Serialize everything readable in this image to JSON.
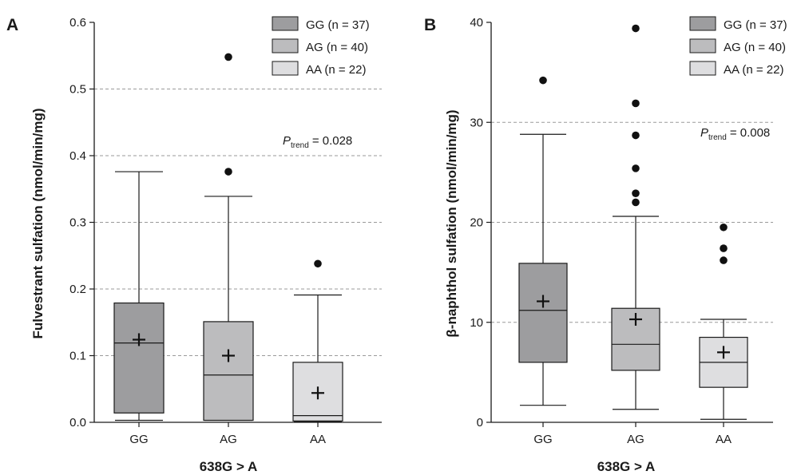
{
  "chart_data": [
    {
      "panel": "A",
      "type": "boxplot",
      "xlabel": "638G > A",
      "ylabel": "Fulvestrant sulfation (nmol/min/mg)",
      "ylim": [
        0,
        0.6
      ],
      "yticks": [
        "0.0",
        "0.1",
        "0.2",
        "0.3",
        "0.4",
        "0.5",
        "0.6"
      ],
      "grid": "horizontal dashed at 0.1–0.5",
      "annotation": {
        "p_symbol": "P",
        "p_subscript": "trend",
        "p_value": "= 0.028"
      },
      "legend": [
        "GG (n = 37)",
        "AG (n = 40)",
        "AA (n = 22)"
      ],
      "categories": [
        "GG",
        "AG",
        "AA"
      ],
      "boxes": [
        {
          "name": "GG",
          "color": "#9d9d9f",
          "whisker_low": 0.003,
          "q1": 0.014,
          "median": 0.119,
          "q3": 0.179,
          "whisker_high": 0.376,
          "mean": 0.124,
          "outliers": []
        },
        {
          "name": "AG",
          "color": "#bcbcbe",
          "whisker_low": 0.003,
          "q1": 0.003,
          "median": 0.071,
          "q3": 0.151,
          "whisker_high": 0.339,
          "mean": 0.1,
          "outliers": [
            0.376,
            0.548
          ]
        },
        {
          "name": "AA",
          "color": "#dedee0",
          "whisker_low": 0.001,
          "q1": 0.002,
          "median": 0.01,
          "q3": 0.09,
          "whisker_high": 0.191,
          "mean": 0.044,
          "outliers": [
            0.238
          ]
        }
      ]
    },
    {
      "panel": "B",
      "type": "boxplot",
      "xlabel": "638G > A",
      "ylabel": "β-naphthol sulfation (nmol/min/mg)",
      "ylim": [
        0,
        40
      ],
      "yticks": [
        "0",
        "10",
        "20",
        "30",
        "40"
      ],
      "grid": "horizontal dashed at 10–30",
      "annotation": {
        "p_symbol": "P",
        "p_subscript": "trend",
        "p_value": "= 0.008"
      },
      "legend": [
        "GG (n = 37)",
        "AG (n = 40)",
        "AA (n = 22)"
      ],
      "categories": [
        "GG",
        "AG",
        "AA"
      ],
      "boxes": [
        {
          "name": "GG",
          "color": "#9d9d9f",
          "whisker_low": 1.7,
          "q1": 6.0,
          "median": 11.2,
          "q3": 15.9,
          "whisker_high": 28.8,
          "mean": 12.1,
          "outliers": [
            34.2
          ]
        },
        {
          "name": "AG",
          "color": "#bcbcbe",
          "whisker_low": 1.3,
          "q1": 5.2,
          "median": 7.8,
          "q3": 11.4,
          "whisker_high": 20.6,
          "mean": 10.3,
          "outliers": [
            22.0,
            22.9,
            25.4,
            28.7,
            31.9,
            39.4
          ]
        },
        {
          "name": "AA",
          "color": "#dedee0",
          "whisker_low": 0.3,
          "q1": 3.5,
          "median": 6.0,
          "q3": 8.5,
          "whisker_high": 10.3,
          "mean": 7.0,
          "outliers": [
            16.2,
            17.4,
            19.5
          ]
        }
      ]
    }
  ]
}
